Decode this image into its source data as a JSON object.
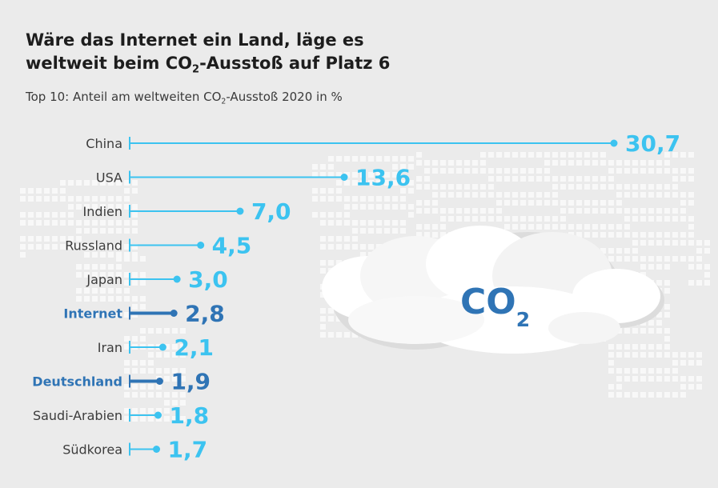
{
  "title": {
    "line1": "Wäre das Internet ein Land, läge es",
    "line2_pre": "weltweit beim CO",
    "line2_sub": "2",
    "line2_post": "-Ausstoß auf Platz 6"
  },
  "subtitle": {
    "pre": "Top 10: Anteil am weltweiten CO",
    "sub": "2",
    "post": "-Ausstoß 2020 in %"
  },
  "illustration": {
    "main": "CO",
    "sub": "2"
  },
  "colors": {
    "background": "#ebebeb",
    "bar": "#3cc3f0",
    "highlight": "#2f74b5",
    "cloud": "#ffffff",
    "map": "#f8f8f8"
  },
  "chart_data": {
    "type": "bar",
    "orientation": "horizontal",
    "categories": [
      "China",
      "USA",
      "Indien",
      "Russland",
      "Japan",
      "Internet",
      "Iran",
      "Deutschland",
      "Saudi-Arabien",
      "Südkorea"
    ],
    "values": [
      30.7,
      13.6,
      7.0,
      4.5,
      3.0,
      2.8,
      2.1,
      1.9,
      1.8,
      1.7
    ],
    "value_labels": [
      "30,7",
      "13,6",
      "7,0",
      "4,5",
      "3,0",
      "2,8",
      "2,1",
      "1,9",
      "1,8",
      "1,7"
    ],
    "highlighted": [
      "Internet",
      "Deutschland"
    ],
    "unit": "%",
    "xlim": [
      0,
      30.7
    ],
    "grid": false,
    "legend": "none"
  }
}
